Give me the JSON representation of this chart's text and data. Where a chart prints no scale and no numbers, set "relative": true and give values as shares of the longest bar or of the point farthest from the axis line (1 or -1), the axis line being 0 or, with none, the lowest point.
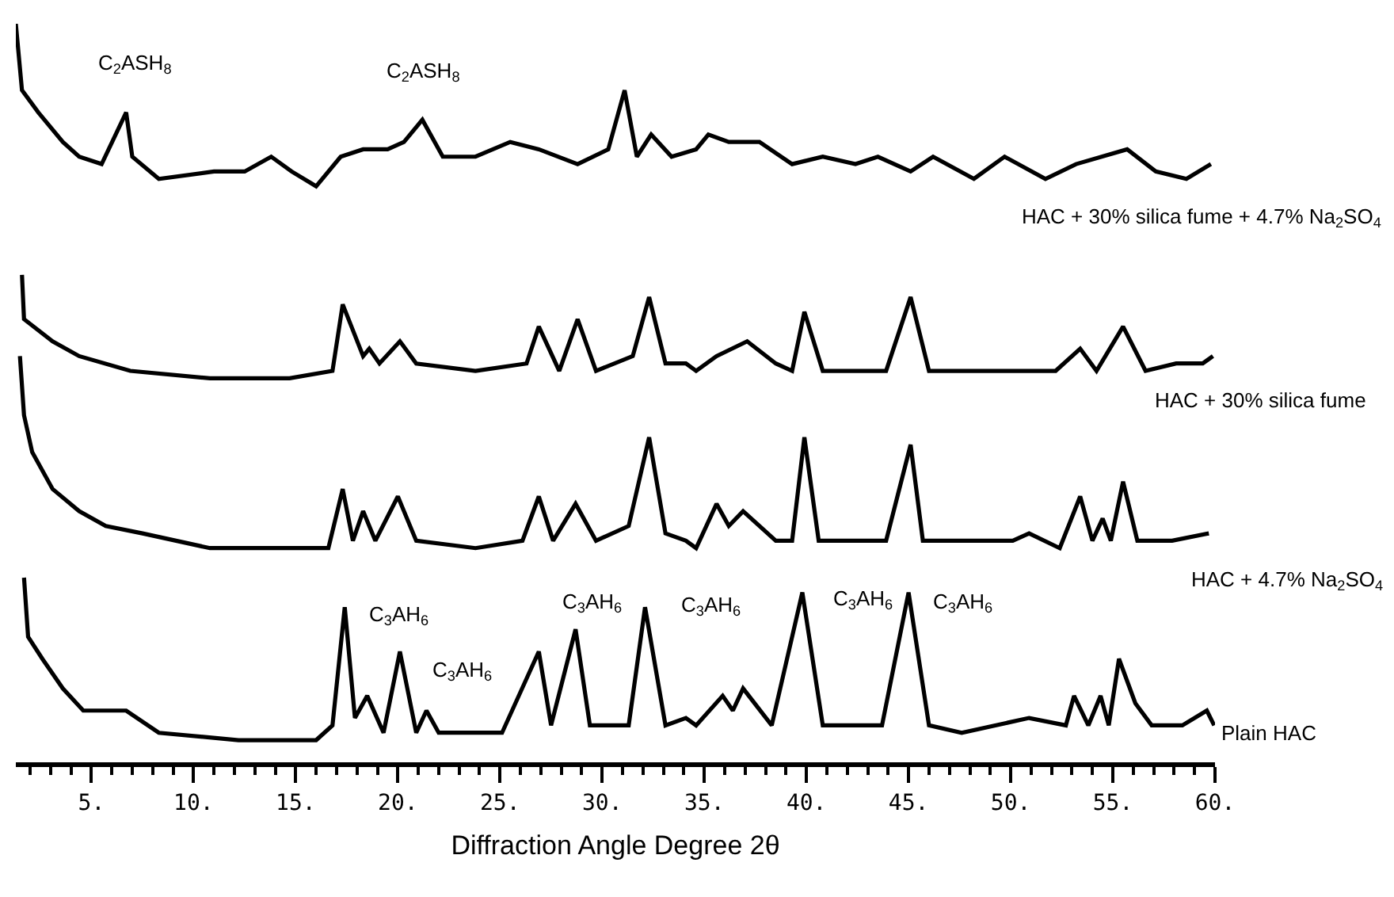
{
  "chart_data": {
    "type": "line",
    "relative": true,
    "xlabel": "Diffraction Angle Degree 2θ",
    "xlim": [
      1.3,
      60
    ],
    "xticks": [
      {
        "value": 5,
        "label": "5."
      },
      {
        "value": 10,
        "label": "10."
      },
      {
        "value": 15,
        "label": "15."
      },
      {
        "value": 20,
        "label": "20."
      },
      {
        "value": 25,
        "label": "25."
      },
      {
        "value": 30,
        "label": "30."
      },
      {
        "value": 35,
        "label": "35."
      },
      {
        "value": 40,
        "label": "40."
      },
      {
        "value": 45,
        "label": "45."
      },
      {
        "value": 50,
        "label": "50."
      },
      {
        "value": 55,
        "label": "55."
      },
      {
        "value": 60,
        "label": "60."
      },
      {
        "value": 2,
        "label": null
      },
      {
        "value": 3,
        "label": null
      },
      {
        "value": 4,
        "label": null
      },
      {
        "value": 6,
        "label": null
      },
      {
        "value": 7,
        "label": null
      },
      {
        "value": 8,
        "label": null
      },
      {
        "value": 9,
        "label": null
      },
      {
        "value": 11,
        "label": null
      },
      {
        "value": 12,
        "label": null
      },
      {
        "value": 13,
        "label": null
      },
      {
        "value": 14,
        "label": null
      },
      {
        "value": 16,
        "label": null
      },
      {
        "value": 17,
        "label": null
      },
      {
        "value": 18,
        "label": null
      },
      {
        "value": 19,
        "label": null
      },
      {
        "value": 21,
        "label": null
      },
      {
        "value": 22,
        "label": null
      },
      {
        "value": 23,
        "label": null
      },
      {
        "value": 24,
        "label": null
      },
      {
        "value": 26,
        "label": null
      },
      {
        "value": 27,
        "label": null
      },
      {
        "value": 28,
        "label": null
      },
      {
        "value": 29,
        "label": null
      },
      {
        "value": 31,
        "label": null
      },
      {
        "value": 32,
        "label": null
      },
      {
        "value": 33,
        "label": null
      },
      {
        "value": 34,
        "label": null
      },
      {
        "value": 36,
        "label": null
      },
      {
        "value": 37,
        "label": null
      },
      {
        "value": 38,
        "label": null
      },
      {
        "value": 39,
        "label": null
      },
      {
        "value": 41,
        "label": null
      },
      {
        "value": 42,
        "label": null
      },
      {
        "value": 43,
        "label": null
      },
      {
        "value": 44,
        "label": null
      },
      {
        "value": 46,
        "label": null
      },
      {
        "value": 47,
        "label": null
      },
      {
        "value": 48,
        "label": null
      },
      {
        "value": 49,
        "label": null
      },
      {
        "value": 51,
        "label": null
      },
      {
        "value": 52,
        "label": null
      },
      {
        "value": 53,
        "label": null
      },
      {
        "value": 54,
        "label": null
      },
      {
        "value": 56,
        "label": null
      },
      {
        "value": 57,
        "label": null
      },
      {
        "value": 58,
        "label": null
      },
      {
        "value": 59,
        "label": null
      }
    ],
    "legend": false,
    "marker": "none",
    "line_style": "solid",
    "series": [
      {
        "name": "HAC + 30% silica fume + 4.7% Na$_{2}$SO$_{4}$",
        "color": "#000000",
        "x": [
          1.3,
          1.6,
          2.4,
          3.6,
          4.4,
          5.5,
          6.7,
          7.0,
          8.3,
          11.0,
          12.5,
          13.8,
          14.8,
          16.0,
          17.2,
          18.3,
          19.5,
          20.3,
          21.2,
          22.2,
          23.8,
          25.5,
          26.9,
          28.8,
          30.3,
          31.1,
          31.7,
          32.4,
          33.4,
          34.6,
          35.2,
          36.2,
          37.7,
          39.3,
          40.8,
          42.4,
          43.5,
          45.1,
          46.2,
          48.2,
          49.7,
          51.7,
          53.2,
          55.7,
          57.1,
          58.6,
          59.8
        ],
        "values": [
          1.0,
          0.91,
          0.88,
          0.84,
          0.82,
          0.81,
          0.88,
          0.82,
          0.79,
          0.8,
          0.8,
          0.82,
          0.8,
          0.78,
          0.82,
          0.83,
          0.83,
          0.84,
          0.87,
          0.82,
          0.82,
          0.84,
          0.83,
          0.81,
          0.83,
          0.91,
          0.82,
          0.85,
          0.82,
          0.83,
          0.85,
          0.84,
          0.84,
          0.81,
          0.82,
          0.81,
          0.82,
          0.8,
          0.82,
          0.79,
          0.82,
          0.79,
          0.81,
          0.83,
          0.8,
          0.79,
          0.81
        ]
      },
      {
        "name": "HAC + 30% silica fume",
        "color": "#000000",
        "x": [
          1.6,
          1.7,
          3.1,
          4.4,
          6.9,
          10.8,
          14.7,
          16.8,
          17.3,
          18.3,
          18.6,
          19.1,
          20.1,
          20.9,
          23.8,
          26.3,
          26.9,
          27.9,
          28.8,
          29.7,
          31.5,
          32.3,
          33.1,
          34.1,
          34.6,
          35.6,
          37.1,
          38.5,
          39.3,
          39.9,
          40.8,
          42.4,
          43.9,
          45.1,
          46.0,
          47.6,
          50.1,
          52.2,
          53.4,
          54.2,
          55.5,
          56.6,
          58.1,
          59.4,
          59.9
        ],
        "values": [
          0.66,
          0.6,
          0.57,
          0.55,
          0.53,
          0.52,
          0.52,
          0.53,
          0.62,
          0.55,
          0.56,
          0.54,
          0.57,
          0.54,
          0.53,
          0.54,
          0.59,
          0.53,
          0.6,
          0.53,
          0.55,
          0.63,
          0.54,
          0.54,
          0.53,
          0.55,
          0.57,
          0.54,
          0.53,
          0.61,
          0.53,
          0.53,
          0.53,
          0.63,
          0.53,
          0.53,
          0.53,
          0.53,
          0.56,
          0.53,
          0.59,
          0.53,
          0.54,
          0.54,
          0.55
        ]
      },
      {
        "name": "HAC + 4.7% Na$_{2}$SO$_{4}$",
        "color": "#000000",
        "x": [
          1.5,
          1.7,
          2.1,
          3.1,
          4.4,
          5.7,
          7.5,
          10.8,
          14.7,
          16.6,
          17.3,
          17.8,
          18.3,
          18.9,
          20.0,
          20.9,
          23.8,
          26.1,
          26.9,
          27.6,
          28.7,
          29.7,
          31.3,
          32.3,
          33.1,
          34.1,
          34.6,
          35.6,
          36.2,
          36.9,
          38.5,
          39.3,
          39.9,
          40.6,
          42.4,
          43.9,
          45.1,
          45.7,
          48.0,
          50.1,
          50.9,
          52.4,
          53.4,
          54.0,
          54.5,
          54.9,
          55.5,
          56.2,
          57.9,
          59.7
        ],
        "values": [
          0.55,
          0.47,
          0.42,
          0.37,
          0.34,
          0.32,
          0.31,
          0.29,
          0.29,
          0.29,
          0.37,
          0.3,
          0.34,
          0.3,
          0.36,
          0.3,
          0.29,
          0.3,
          0.36,
          0.3,
          0.35,
          0.3,
          0.32,
          0.44,
          0.31,
          0.3,
          0.29,
          0.35,
          0.32,
          0.34,
          0.3,
          0.3,
          0.44,
          0.3,
          0.3,
          0.3,
          0.43,
          0.3,
          0.3,
          0.3,
          0.31,
          0.29,
          0.36,
          0.3,
          0.33,
          0.3,
          0.38,
          0.3,
          0.3,
          0.31
        ]
      },
      {
        "name": "Plain HAC",
        "color": "#000000",
        "x": [
          1.7,
          1.9,
          2.6,
          3.6,
          4.6,
          6.7,
          8.3,
          12.2,
          16.0,
          16.8,
          17.4,
          17.9,
          18.5,
          19.3,
          20.1,
          20.9,
          21.4,
          22.0,
          25.1,
          26.9,
          27.5,
          28.7,
          29.4,
          31.3,
          32.1,
          33.1,
          34.1,
          34.6,
          35.9,
          36.4,
          36.9,
          38.3,
          39.8,
          40.8,
          43.7,
          45.0,
          46.0,
          47.6,
          50.9,
          52.7,
          53.1,
          53.8,
          54.4,
          54.8,
          55.3,
          56.1,
          56.9,
          58.4,
          59.6,
          59.96
        ],
        "values": [
          0.25,
          0.17,
          0.14,
          0.1,
          0.07,
          0.07,
          0.04,
          0.03,
          0.03,
          0.05,
          0.21,
          0.06,
          0.09,
          0.04,
          0.15,
          0.04,
          0.07,
          0.04,
          0.04,
          0.15,
          0.05,
          0.18,
          0.05,
          0.05,
          0.21,
          0.05,
          0.06,
          0.05,
          0.09,
          0.07,
          0.1,
          0.05,
          0.23,
          0.05,
          0.05,
          0.23,
          0.05,
          0.04,
          0.06,
          0.05,
          0.09,
          0.05,
          0.09,
          0.05,
          0.14,
          0.08,
          0.05,
          0.05,
          0.07,
          0.05
        ]
      }
    ],
    "annotations": [
      {
        "text": "C$_{2}$ASH$_{8}$",
        "x": 6.7,
        "y": 0.88
      },
      {
        "text": "C$_{2}$ASH$_{8}$",
        "x": 21.2,
        "y": 0.87
      },
      {
        "text": "C$_{3}$AH$_{6}$",
        "x": 17.4,
        "y": 0.21
      },
      {
        "text": "C$_{3}$AH$_{6}$",
        "x": 20.1,
        "y": 0.15
      },
      {
        "text": "C$_{3}$AH$_{6}$",
        "x": 28.7,
        "y": 0.18
      },
      {
        "text": "C$_{3}$AH$_{6}$",
        "x": 32.1,
        "y": 0.21
      },
      {
        "text": "C$_{3}$AH$_{6}$",
        "x": 39.8,
        "y": 0.23
      },
      {
        "text": "C$_{3}$AH$_{6}$",
        "x": 45.0,
        "y": 0.23
      }
    ]
  }
}
